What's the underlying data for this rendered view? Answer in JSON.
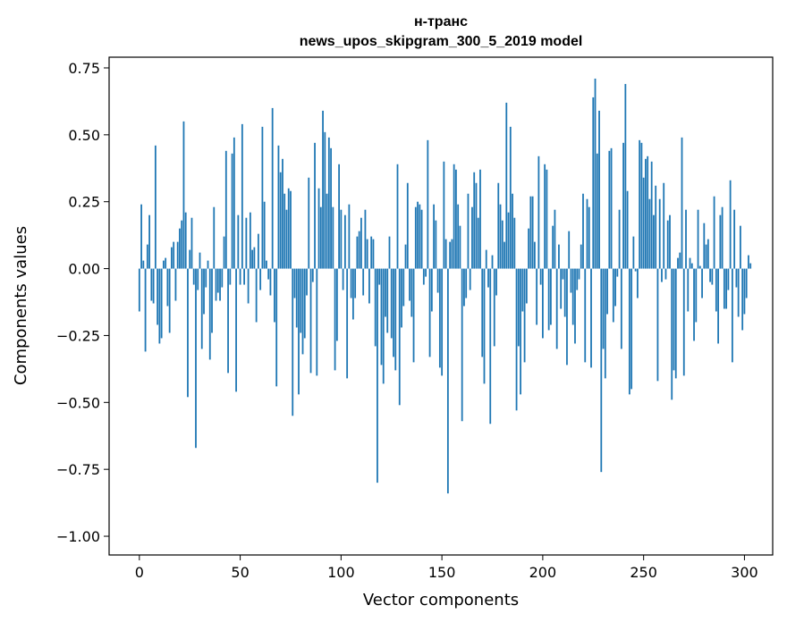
{
  "chart_data": {
    "type": "bar",
    "title": "н-транс",
    "subtitle": "news_upos_skipgram_300_5_2019 model",
    "xlabel": "Vector components",
    "ylabel": "Components values",
    "xlim": [
      -15,
      314
    ],
    "ylim": [
      -1.07,
      0.79
    ],
    "xticks": [
      0,
      50,
      100,
      150,
      200,
      250,
      300
    ],
    "xtick_labels": [
      "0",
      "50",
      "100",
      "150",
      "200",
      "250",
      "300"
    ],
    "yticks": [
      0.75,
      0.5,
      0.25,
      0.0,
      -0.25,
      -0.5,
      -0.75,
      -1.0
    ],
    "ytick_labels": [
      "0.75",
      "0.50",
      "0.25",
      "0.00",
      "−0.25",
      "−0.50",
      "−0.75",
      "−1.00"
    ],
    "bar_color": "#1f77b4",
    "values": [
      -0.16,
      0.24,
      0.03,
      -0.31,
      0.09,
      0.2,
      -0.12,
      -0.13,
      0.46,
      -0.21,
      -0.28,
      -0.26,
      0.03,
      0.04,
      -0.14,
      -0.24,
      0.08,
      0.1,
      -0.12,
      0.1,
      0.15,
      0.18,
      0.55,
      0.21,
      -0.48,
      0.07,
      0.19,
      -0.06,
      -0.67,
      -0.08,
      0.06,
      -0.3,
      -0.17,
      -0.07,
      0.03,
      -0.34,
      -0.24,
      0.23,
      -0.12,
      -0.09,
      -0.12,
      -0.07,
      0.12,
      0.44,
      -0.39,
      -0.06,
      0.43,
      0.49,
      -0.46,
      0.2,
      -0.06,
      0.54,
      -0.06,
      0.19,
      -0.13,
      0.21,
      0.07,
      0.08,
      -0.2,
      0.13,
      -0.08,
      0.53,
      0.25,
      0.03,
      -0.04,
      -0.1,
      0.6,
      -0.2,
      -0.44,
      0.46,
      0.36,
      0.41,
      0.28,
      0.22,
      0.3,
      0.29,
      -0.55,
      -0.11,
      -0.22,
      -0.47,
      -0.24,
      -0.32,
      -0.26,
      -0.1,
      0.34,
      -0.39,
      -0.05,
      0.47,
      -0.4,
      0.3,
      0.23,
      0.59,
      0.51,
      0.28,
      0.49,
      0.45,
      0.23,
      -0.38,
      -0.27,
      0.39,
      0.22,
      -0.08,
      0.2,
      -0.41,
      0.24,
      -0.11,
      -0.19,
      -0.11,
      0.12,
      0.14,
      0.19,
      -0.1,
      0.22,
      0.11,
      -0.13,
      0.12,
      0.11,
      -0.29,
      -0.8,
      -0.06,
      -0.36,
      -0.43,
      -0.18,
      -0.24,
      0.12,
      -0.26,
      -0.33,
      -0.38,
      0.39,
      -0.51,
      -0.22,
      -0.14,
      0.09,
      0.32,
      -0.12,
      -0.18,
      -0.35,
      0.23,
      0.25,
      0.24,
      0.22,
      -0.06,
      -0.03,
      0.48,
      -0.33,
      -0.16,
      0.24,
      0.18,
      -0.09,
      -0.37,
      -0.4,
      0.4,
      0.11,
      -0.84,
      0.1,
      0.11,
      0.39,
      0.37,
      0.24,
      0.16,
      -0.57,
      -0.14,
      -0.11,
      0.28,
      -0.08,
      0.23,
      0.36,
      0.32,
      0.19,
      0.37,
      -0.33,
      -0.43,
      0.07,
      -0.07,
      -0.58,
      0.05,
      -0.29,
      -0.1,
      0.32,
      0.24,
      0.18,
      0.1,
      0.62,
      0.21,
      0.53,
      0.28,
      0.19,
      -0.53,
      -0.29,
      -0.47,
      -0.16,
      -0.35,
      -0.13,
      0.15,
      0.27,
      0.27,
      0.1,
      -0.21,
      0.42,
      -0.06,
      -0.26,
      0.39,
      0.37,
      -0.23,
      -0.21,
      0.16,
      0.22,
      -0.3,
      0.09,
      -0.15,
      -0.04,
      -0.18,
      -0.36,
      0.14,
      -0.09,
      -0.21,
      -0.28,
      -0.08,
      -0.04,
      0.09,
      0.28,
      -0.35,
      0.26,
      0.23,
      -0.37,
      0.64,
      0.71,
      0.43,
      0.59,
      -0.76,
      -0.3,
      -0.41,
      -0.17,
      0.44,
      0.45,
      -0.2,
      -0.14,
      -0.03,
      0.22,
      -0.3,
      0.47,
      0.69,
      0.29,
      -0.47,
      -0.45,
      0.12,
      -0.01,
      -0.11,
      0.48,
      0.47,
      0.34,
      0.41,
      0.42,
      0.26,
      0.4,
      0.2,
      0.31,
      -0.42,
      0.26,
      -0.05,
      0.32,
      -0.04,
      0.18,
      0.2,
      -0.49,
      -0.38,
      -0.41,
      0.04,
      0.06,
      0.49,
      -0.4,
      0.22,
      -0.16,
      0.04,
      0.02,
      -0.27,
      -0.2,
      0.22,
      0.01,
      -0.11,
      0.17,
      0.09,
      0.11,
      -0.05,
      -0.06,
      0.27,
      -0.16,
      -0.28,
      0.2,
      0.23,
      -0.15,
      -0.15,
      -0.08,
      0.33,
      -0.35,
      0.22,
      -0.07,
      -0.18,
      0.16,
      -0.23,
      -0.17,
      -0.11,
      0.05,
      0.02
    ]
  }
}
